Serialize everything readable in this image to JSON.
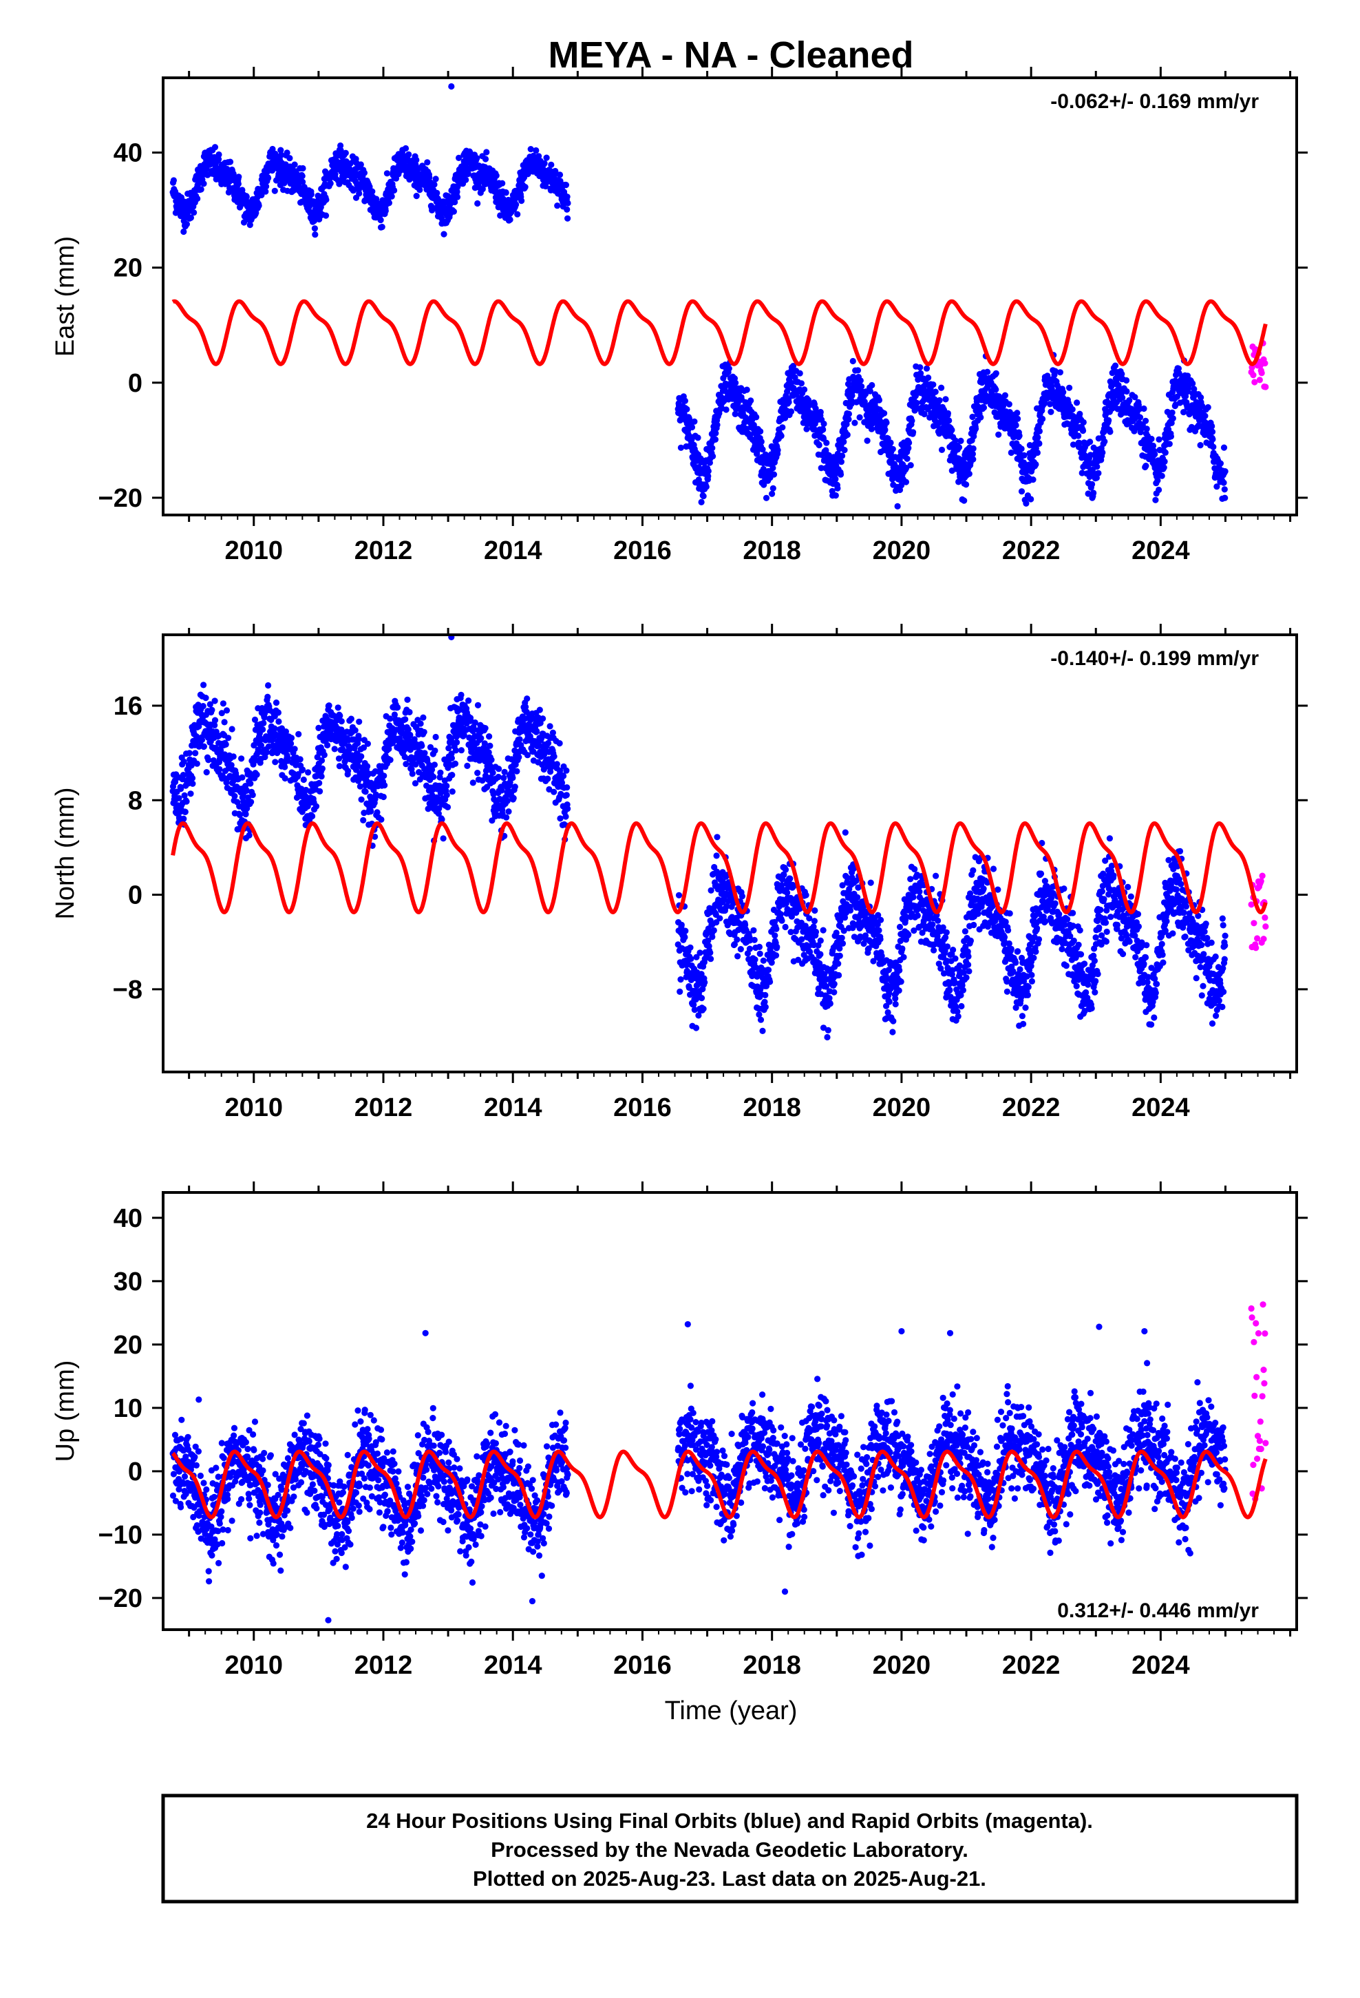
{
  "title": "MEYA  - NA - Cleaned",
  "xlabel": "Time (year)",
  "footer": {
    "line1": "24 Hour Positions Using Final Orbits (blue) and Rapid Orbits (magenta).",
    "line2": "Processed by the Nevada Geodetic Laboratory.",
    "line3": "Plotted on 2025-Aug-23. Last data on 2025-Aug-21."
  },
  "colors": {
    "final": "#0000ff",
    "rapid": "#ff00ff",
    "model": "#ff0000",
    "axis": "#000000"
  },
  "chart_data": [
    {
      "type": "scatter",
      "component": "East",
      "ylabel": "East (mm)",
      "rate": "-0.062+/- 0.169 mm/yr",
      "xlim": [
        2008.6,
        2026.1
      ],
      "ylim": [
        -23,
        53
      ],
      "xticks": [
        2010,
        2012,
        2014,
        2016,
        2018,
        2020,
        2022,
        2024
      ],
      "yticks": [
        -20,
        0,
        20,
        40
      ],
      "segments": [
        {
          "x_range": [
            2008.75,
            2014.85
          ],
          "offset": 34.5,
          "amplitude": 4.5,
          "phase": 0.15,
          "noise": 1.4
        },
        {
          "x_range": [
            2016.55,
            2025.0
          ],
          "offset": -7.5,
          "amplitude": 8.0,
          "phase": 0.15,
          "noise": 2.0
        }
      ],
      "outliers": [
        [
          2013.05,
          51.5
        ]
      ],
      "rapid": {
        "x_range": [
          2025.4,
          2025.62
        ],
        "y_range": [
          -1,
          7
        ]
      },
      "model": {
        "x_range": [
          2008.75,
          2025.62
        ],
        "offset": 9.3,
        "amplitude": 5.8,
        "phase": 0.62
      }
    },
    {
      "type": "scatter",
      "component": "North",
      "ylabel": "North (mm)",
      "rate": "-0.140+/- 0.199 mm/yr",
      "xlim": [
        2008.6,
        2026.1
      ],
      "ylim": [
        -15,
        22
      ],
      "xticks": [
        2010,
        2012,
        2014,
        2016,
        2018,
        2020,
        2022,
        2024
      ],
      "yticks": [
        -8,
        0,
        8,
        16
      ],
      "segments": [
        {
          "x_range": [
            2008.75,
            2014.85
          ],
          "offset": 11.5,
          "amplitude": 3.5,
          "phase": 0.05,
          "noise": 1.4
        },
        {
          "x_range": [
            2016.55,
            2025.0
          ],
          "offset": -3.5,
          "amplitude": 4.5,
          "phase": 0.05,
          "noise": 1.5
        }
      ],
      "outliers": [
        [
          2013.05,
          21.8
        ]
      ],
      "rapid": {
        "x_range": [
          2025.4,
          2025.62
        ],
        "y_range": [
          -4.5,
          2
        ]
      },
      "model": {
        "x_range": [
          2008.75,
          2025.62
        ],
        "offset": 2.7,
        "amplitude": 4.0,
        "phase": 0.75
      }
    },
    {
      "type": "scatter",
      "component": "Up",
      "ylabel": "Up (mm)",
      "rate": "0.312+/- 0.446 mm/yr",
      "xlim": [
        2008.6,
        2026.1
      ],
      "ylim": [
        -25,
        44
      ],
      "xticks": [
        2010,
        2012,
        2014,
        2016,
        2018,
        2020,
        2022,
        2024
      ],
      "yticks": [
        -20,
        -10,
        0,
        10,
        20,
        30,
        40
      ],
      "segments": [
        {
          "x_range": [
            2008.75,
            2014.85
          ],
          "offset": -2.5,
          "amplitude": 5.5,
          "phase": 0.55,
          "noise": 3.5
        },
        {
          "x_range": [
            2016.55,
            2025.0
          ],
          "offset": 0.8,
          "amplitude": 5.5,
          "phase": 0.55,
          "noise": 3.5
        }
      ],
      "outliers": [
        [
          2011.15,
          -23.5
        ],
        [
          2012.65,
          21.8
        ],
        [
          2016.7,
          23.2
        ],
        [
          2020.0,
          22.1
        ],
        [
          2020.75,
          21.8
        ],
        [
          2023.05,
          22.8
        ],
        [
          2023.75,
          22.1
        ],
        [
          2014.3,
          -20.5
        ],
        [
          2018.2,
          -19.0
        ]
      ],
      "rapid": {
        "x_range": [
          2025.4,
          2025.62
        ],
        "y_range": [
          -5,
          27
        ]
      },
      "model": {
        "x_range": [
          2008.75,
          2025.62
        ],
        "offset": -1.5,
        "amplitude": 5.5,
        "phase": 0.55
      }
    }
  ]
}
